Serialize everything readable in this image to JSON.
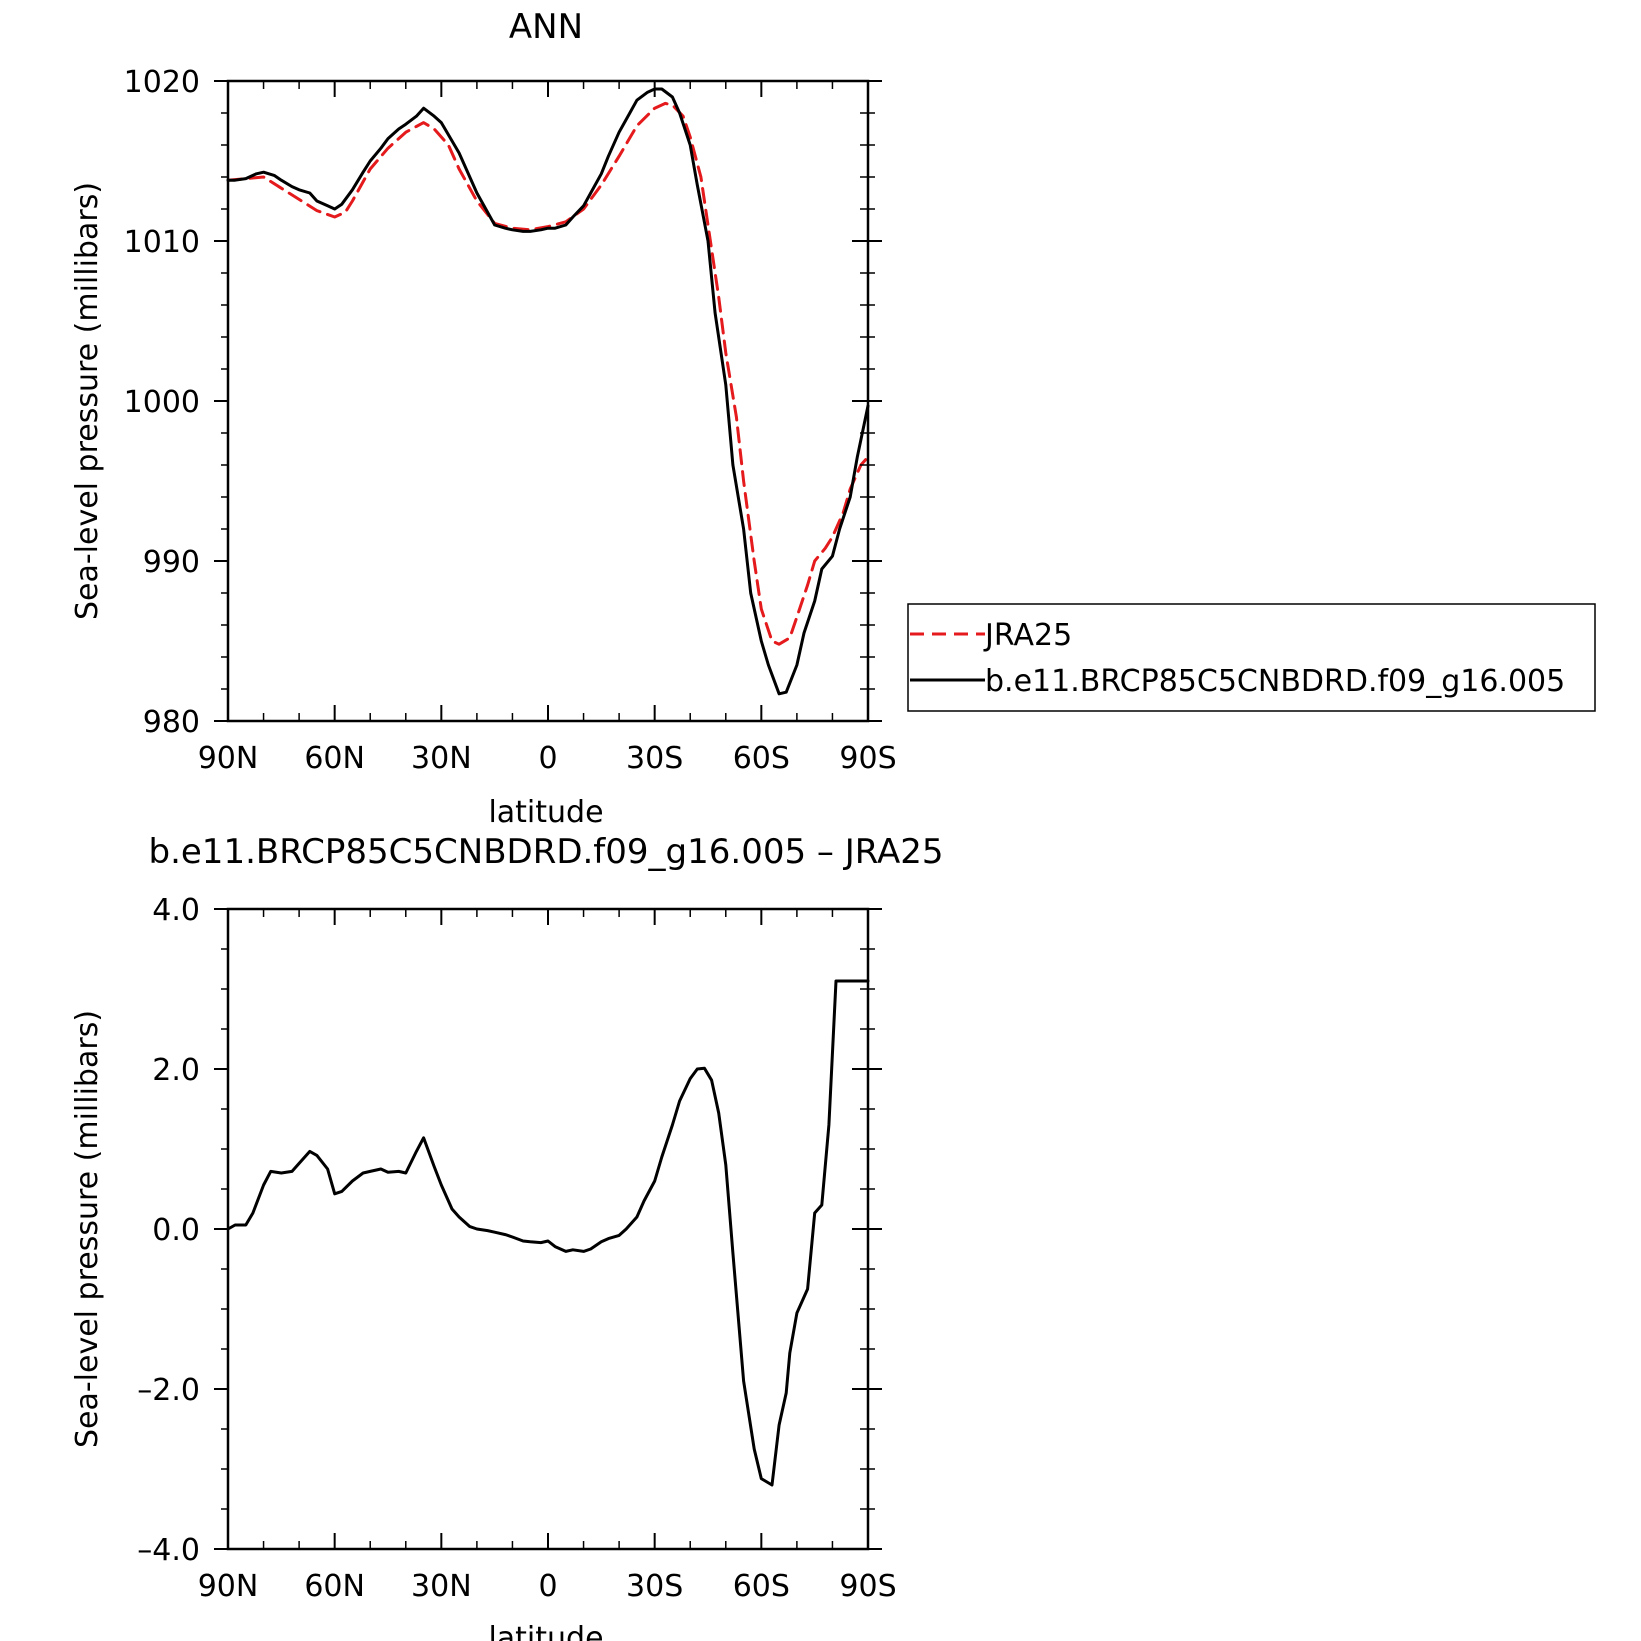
{
  "chart_data": [
    {
      "type": "line",
      "title": "ANN",
      "xlabel": "latitude",
      "ylabel": "Sea-level pressure (millibars)",
      "xlim": [
        90,
        -90
      ],
      "ylim": [
        980,
        1020
      ],
      "x_ticks": [
        90,
        60,
        30,
        0,
        -30,
        -60,
        -90
      ],
      "x_tick_labels": [
        "90N",
        "60N",
        "30N",
        "0",
        "30S",
        "60S",
        "90S"
      ],
      "y_ticks": [
        980,
        990,
        1000,
        1010,
        1020
      ],
      "y_tick_labels": [
        "980",
        "990",
        "1000",
        "1010",
        "1020"
      ],
      "legend": {
        "position": "right",
        "entries": [
          "JRA25",
          "b.e11.BRCP85C5CNBDRD.f09_g16.005"
        ]
      },
      "series": [
        {
          "name": "JRA25",
          "color": "#e41a1c",
          "dash": "dashed",
          "x": [
            90,
            85,
            80,
            75,
            70,
            65,
            60,
            57,
            55,
            50,
            45,
            40,
            35,
            32,
            28,
            25,
            20,
            15,
            10,
            5,
            0,
            -5,
            -10,
            -15,
            -20,
            -25,
            -30,
            -33,
            -35,
            -38,
            -40,
            -43,
            -45,
            -48,
            -50,
            -53,
            -55,
            -58,
            -60,
            -63,
            -65,
            -68,
            -70,
            -73,
            -75,
            -78,
            -80,
            -83,
            -85,
            -88,
            -90
          ],
          "values": [
            1013.8,
            1013.9,
            1014.0,
            1013.3,
            1012.6,
            1011.9,
            1011.5,
            1011.8,
            1012.5,
            1014.5,
            1015.8,
            1016.8,
            1017.4,
            1017.0,
            1016.0,
            1014.5,
            1012.5,
            1011.1,
            1010.8,
            1010.7,
            1010.9,
            1011.2,
            1012.0,
            1013.5,
            1015.3,
            1017.2,
            1018.3,
            1018.6,
            1018.5,
            1017.8,
            1016.5,
            1014.0,
            1011.0,
            1006.5,
            1003.0,
            999.0,
            995.0,
            990.0,
            987.0,
            985.0,
            984.8,
            985.2,
            986.5,
            988.5,
            990.0,
            990.8,
            991.5,
            993.0,
            994.5,
            996.0,
            996.5
          ]
        },
        {
          "name": "b.e11.BRCP85C5CNBDRD.f09_g16.005",
          "color": "#000000",
          "dash": "solid",
          "x": [
            90,
            88,
            85,
            82,
            80,
            77,
            75,
            72,
            70,
            67,
            65,
            62,
            60,
            58,
            55,
            52,
            50,
            47,
            45,
            42,
            40,
            37,
            35,
            32,
            30,
            25,
            20,
            15,
            12,
            10,
            7,
            5,
            2,
            0,
            -2,
            -5,
            -7,
            -10,
            -12,
            -15,
            -17,
            -20,
            -23,
            -25,
            -28,
            -30,
            -32,
            -35,
            -37,
            -40,
            -42,
            -45,
            -47,
            -50,
            -52,
            -55,
            -57,
            -60,
            -62,
            -65,
            -67,
            -70,
            -72,
            -75,
            -77,
            -80,
            -82,
            -85,
            -87,
            -90
          ],
          "values": [
            1013.8,
            1013.8,
            1013.9,
            1014.2,
            1014.3,
            1014.1,
            1013.8,
            1013.4,
            1013.2,
            1013.0,
            1012.5,
            1012.2,
            1012.0,
            1012.3,
            1013.2,
            1014.3,
            1015.0,
            1015.8,
            1016.4,
            1017.0,
            1017.3,
            1017.8,
            1018.3,
            1017.8,
            1017.4,
            1015.5,
            1013.0,
            1011.0,
            1010.8,
            1010.7,
            1010.6,
            1010.6,
            1010.7,
            1010.8,
            1010.8,
            1011.0,
            1011.5,
            1012.2,
            1013.0,
            1014.2,
            1015.3,
            1016.8,
            1018.0,
            1018.8,
            1019.3,
            1019.5,
            1019.5,
            1019.0,
            1018.0,
            1016.0,
            1013.5,
            1010.0,
            1005.5,
            1001.0,
            996.0,
            992.0,
            988.0,
            985.0,
            983.5,
            981.7,
            981.8,
            983.5,
            985.5,
            987.5,
            989.5,
            990.3,
            992.0,
            994.0,
            996.5,
            999.7
          ]
        }
      ]
    },
    {
      "type": "line",
      "title": "b.e11.BRCP85C5CNBDRD.f09_g16.005 – JRA25",
      "xlabel": "latitude",
      "ylabel": "Sea-level pressure (millibars)",
      "xlim": [
        90,
        -90
      ],
      "ylim": [
        -4.0,
        4.0
      ],
      "x_ticks": [
        90,
        60,
        30,
        0,
        -30,
        -60,
        -90
      ],
      "x_tick_labels": [
        "90N",
        "60N",
        "30N",
        "0",
        "30S",
        "60S",
        "90S"
      ],
      "y_ticks": [
        -4.0,
        -2.0,
        0.0,
        2.0,
        4.0
      ],
      "y_tick_labels": [
        "–4.0",
        "–2.0",
        "0.0",
        "2.0",
        "4.0"
      ],
      "series": [
        {
          "color": "#000000",
          "dash": "solid",
          "x": [
            90,
            88,
            85,
            83,
            80,
            78,
            75,
            72,
            70,
            67,
            65,
            62,
            60,
            58,
            55,
            52,
            50,
            47,
            45,
            42,
            40,
            37,
            35,
            32,
            30,
            27,
            25,
            22,
            20,
            17,
            15,
            12,
            10,
            7,
            5,
            2,
            0,
            -2,
            -5,
            -7,
            -10,
            -12,
            -15,
            -17,
            -20,
            -22,
            -25,
            -27,
            -30,
            -32,
            -35,
            -37,
            -40,
            -42,
            -44,
            -46,
            -48,
            -50,
            -52,
            -55,
            -58,
            -60,
            -63,
            -65,
            -67,
            -68,
            -70,
            -73,
            -75,
            -77,
            -79,
            -81,
            -83,
            -85,
            -87,
            -89,
            -90
          ],
          "values": [
            0.0,
            0.05,
            0.05,
            0.2,
            0.55,
            0.72,
            0.7,
            0.72,
            0.82,
            0.97,
            0.92,
            0.75,
            0.44,
            0.47,
            0.6,
            0.7,
            0.72,
            0.75,
            0.71,
            0.72,
            0.7,
            0.97,
            1.14,
            0.78,
            0.55,
            0.25,
            0.15,
            0.03,
            0.0,
            -0.02,
            -0.04,
            -0.07,
            -0.1,
            -0.15,
            -0.16,
            -0.17,
            -0.15,
            -0.22,
            -0.28,
            -0.26,
            -0.28,
            -0.25,
            -0.16,
            -0.12,
            -0.08,
            0.0,
            0.15,
            0.35,
            0.6,
            0.9,
            1.3,
            1.6,
            1.88,
            2.0,
            2.01,
            1.86,
            1.45,
            0.8,
            -0.3,
            -1.9,
            -2.75,
            -3.12,
            -3.2,
            -2.45,
            -2.05,
            -1.55,
            -1.05,
            -0.75,
            0.2,
            0.3,
            1.3,
            3.1,
            3.1,
            3.1,
            3.1,
            3.1,
            3.1
          ]
        }
      ]
    }
  ]
}
